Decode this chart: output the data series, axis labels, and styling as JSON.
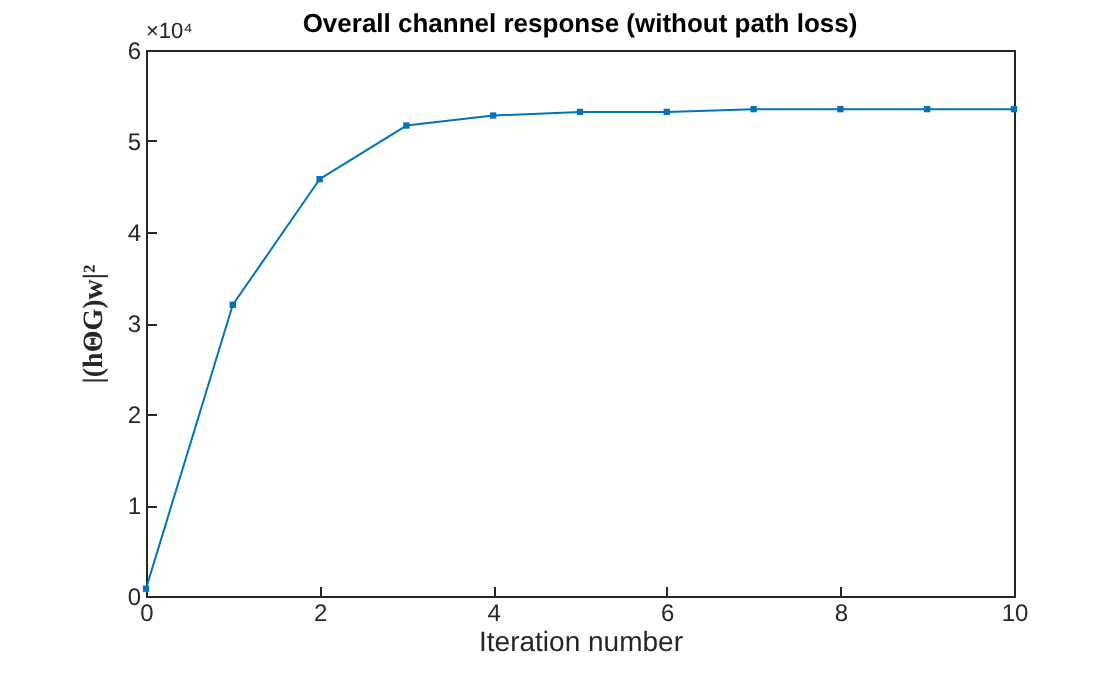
{
  "chart_data": {
    "type": "line",
    "title": "Overall channel response (without path loss)",
    "xlabel": "Iteration number",
    "ylabel": "|(hΘG)w|²",
    "annotations": [
      "×10⁴"
    ],
    "x": [
      0,
      1,
      2,
      3,
      4,
      5,
      6,
      7,
      8,
      9,
      10
    ],
    "series": [
      {
        "color": "#0072bd",
        "values": [
          0.08,
          3.2,
          4.58,
          5.17,
          5.28,
          5.32,
          5.32,
          5.35,
          5.35,
          5.35,
          5.35
        ]
      }
    ],
    "xlim": [
      0,
      10
    ],
    "xticks": [
      0,
      2,
      4,
      6,
      8,
      10
    ],
    "ylim": [
      0,
      6
    ],
    "yticks": [
      0,
      1,
      2,
      3,
      4,
      5,
      6
    ],
    "marker": "square",
    "line_style": "solid",
    "grid": false
  }
}
